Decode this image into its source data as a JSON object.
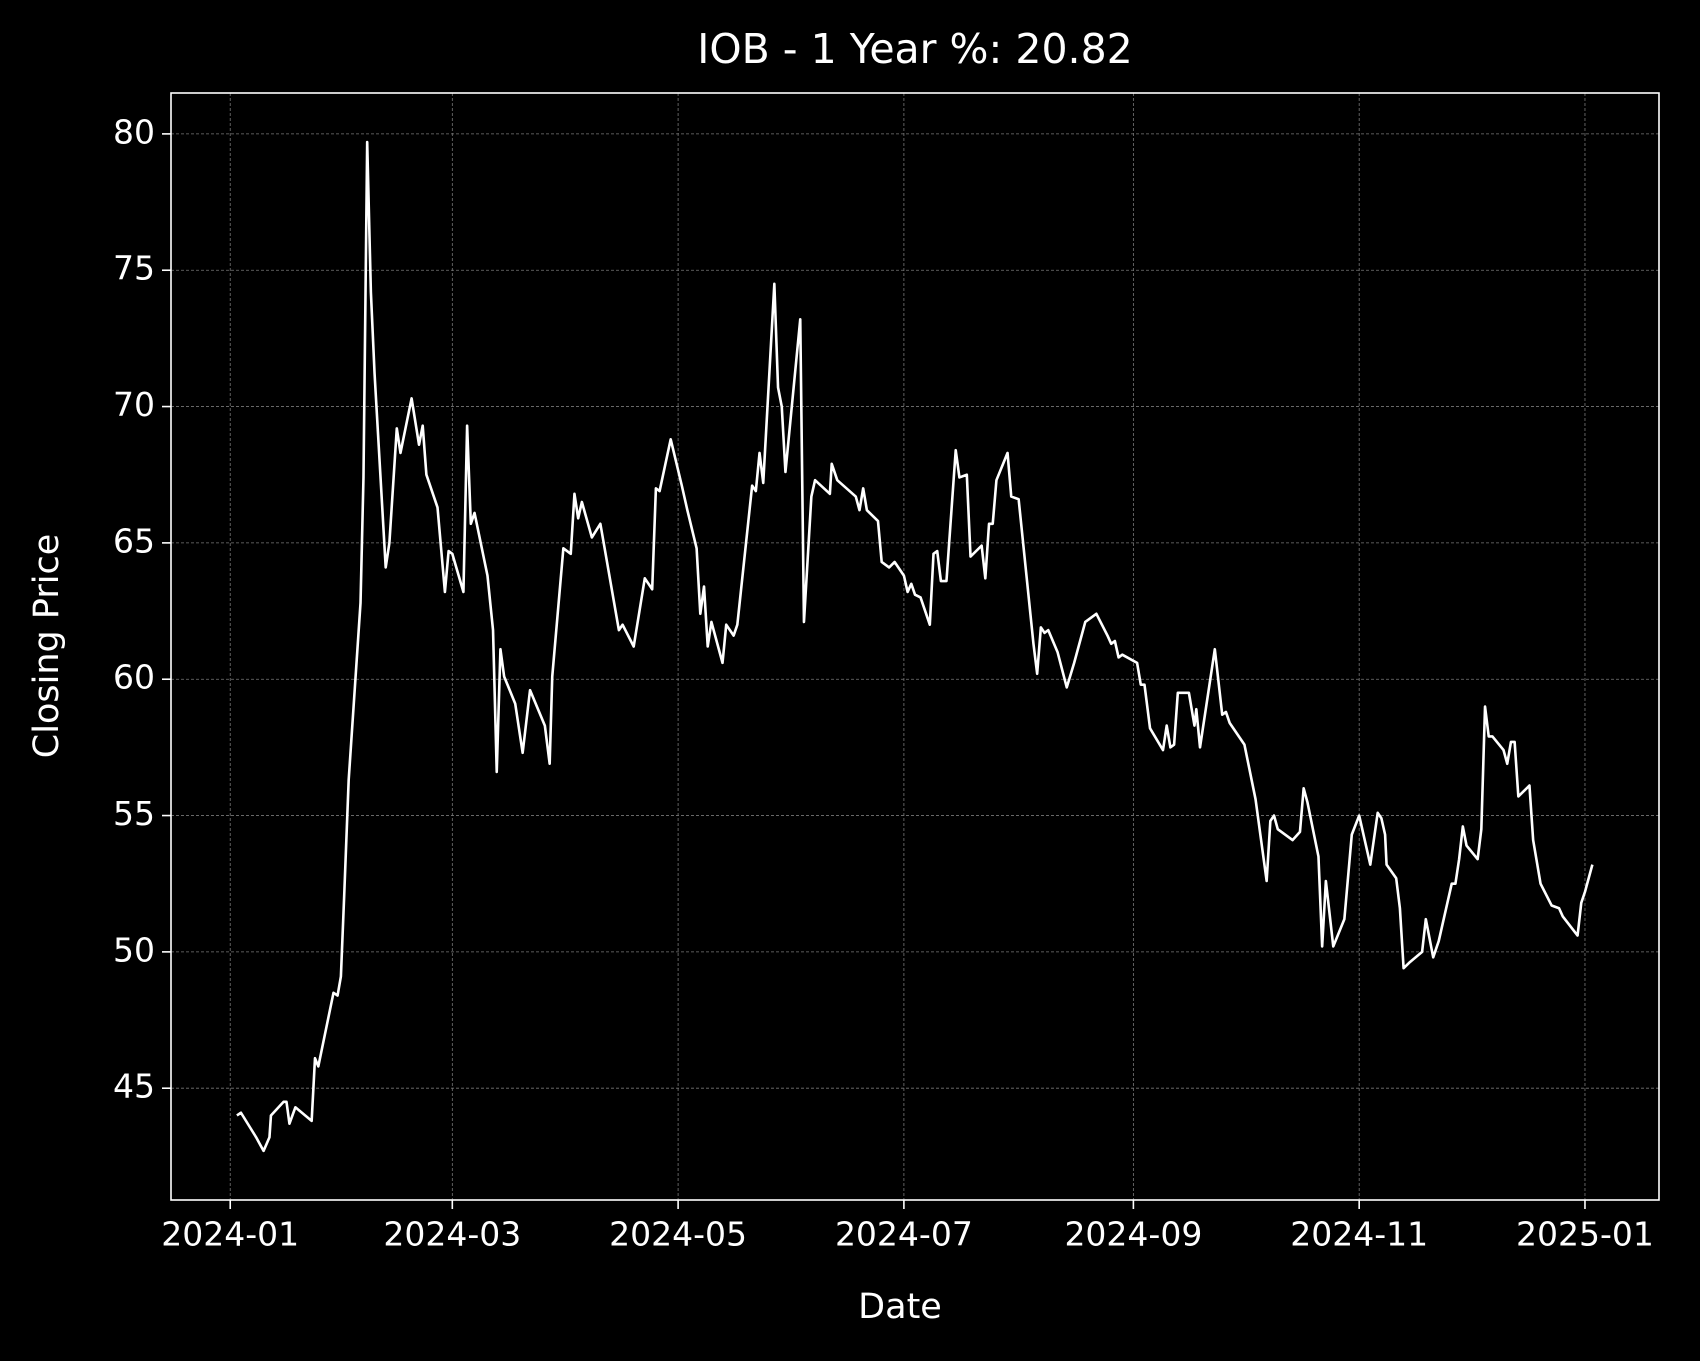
{
  "chart_data": {
    "type": "line",
    "title": "IOB - 1 Year %: 20.82",
    "x_label": "Date",
    "y_label": "Closing Price",
    "color": "#ffffff",
    "grid": true,
    "x": [
      1.8,
      2.9,
      7,
      9,
      10.6,
      11,
      14.4,
      15.2,
      16,
      17.6,
      22,
      22.9,
      23.8,
      27.9,
      29,
      29.9,
      30.8,
      32,
      35.2,
      36,
      37,
      38,
      39,
      42,
      43,
      45,
      46,
      49,
      51,
      52,
      53,
      56,
      58,
      59,
      60,
      63,
      64,
      65,
      66,
      69.5,
      71,
      72,
      73,
      74,
      77,
      79,
      81,
      85,
      86.3,
      87,
      90,
      92,
      93,
      94,
      95,
      97.7,
      100,
      105,
      106,
      109,
      112,
      114,
      115,
      116,
      119,
      122,
      123.5,
      126,
      127,
      128,
      129,
      130,
      133,
      134,
      136,
      137,
      141,
      142,
      143,
      144,
      147,
      148,
      149,
      150,
      154,
      155,
      157,
      158,
      162,
      162.5,
      164,
      169,
      170,
      171,
      172,
      175,
      176,
      178,
      179.5,
      182,
      183,
      184,
      185,
      186.5,
      189,
      190,
      191,
      192,
      193.5,
      196,
      197,
      199,
      200,
      203,
      204,
      205,
      206,
      207,
      210,
      211,
      213,
      217,
      218,
      219,
      220,
      221,
      223.5,
      226,
      228,
      231,
      234,
      237,
      238,
      239,
      240,
      241,
      245,
      246,
      247,
      248.5,
      252,
      253,
      254,
      255,
      256,
      259,
      260.5,
      261,
      262,
      266,
      268,
      269,
      270,
      274,
      277,
      280,
      281,
      282,
      283,
      287,
      289,
      290,
      291,
      294,
      295,
      296,
      298,
      301,
      303,
      305,
      308,
      310,
      311,
      312,
      312.4,
      315,
      316,
      317,
      318.5,
      322,
      323,
      325,
      326.5,
      330,
      331,
      332,
      333,
      334,
      337,
      338,
      339,
      340,
      341,
      344,
      345,
      346,
      347,
      348,
      351,
      352,
      354,
      357,
      359,
      360,
      364,
      365,
      366,
      368
    ],
    "values": [
      44.0,
      44.1,
      43.2,
      42.7,
      43.2,
      44.0,
      44.5,
      44.5,
      43.7,
      44.3,
      43.8,
      46.1,
      45.8,
      48.5,
      48.4,
      49.1,
      52.1,
      56.3,
      62.8,
      67.4,
      79.7,
      74.2,
      71.2,
      64.1,
      65.0,
      69.2,
      68.3,
      70.3,
      68.6,
      69.3,
      67.5,
      66.3,
      63.2,
      64.7,
      64.6,
      63.2,
      69.3,
      65.7,
      66.1,
      63.8,
      61.8,
      56.6,
      61.1,
      60.1,
      59.1,
      57.3,
      59.6,
      58.3,
      56.9,
      60.1,
      64.8,
      64.6,
      66.8,
      65.9,
      66.5,
      65.2,
      65.7,
      61.8,
      62.0,
      61.2,
      63.7,
      63.3,
      67.0,
      66.9,
      68.8,
      67.1,
      66.2,
      64.8,
      62.4,
      63.4,
      61.2,
      62.1,
      60.6,
      62.0,
      61.6,
      62.0,
      67.1,
      66.9,
      68.3,
      67.2,
      74.5,
      70.7,
      70.0,
      67.6,
      73.2,
      62.1,
      66.7,
      67.3,
      66.8,
      67.9,
      67.3,
      66.7,
      66.2,
      67.0,
      66.2,
      65.8,
      64.3,
      64.1,
      64.3,
      63.8,
      63.2,
      63.5,
      63.1,
      63.0,
      62.0,
      64.6,
      64.7,
      63.6,
      63.6,
      68.4,
      67.4,
      67.5,
      64.5,
      64.9,
      63.7,
      65.7,
      65.7,
      67.3,
      68.3,
      66.7,
      66.6,
      61.3,
      60.2,
      61.9,
      61.7,
      61.8,
      61.0,
      59.7,
      60.6,
      62.1,
      62.4,
      61.6,
      61.3,
      61.4,
      60.8,
      60.9,
      60.6,
      59.8,
      59.8,
      58.2,
      57.4,
      58.3,
      57.5,
      57.6,
      59.5,
      59.5,
      58.3,
      58.9,
      57.5,
      61.1,
      58.7,
      58.8,
      58.4,
      57.6,
      55.6,
      52.6,
      54.8,
      55.0,
      54.5,
      54.1,
      54.4,
      56.0,
      55.5,
      53.5,
      50.2,
      52.6,
      50.2,
      51.2,
      54.3,
      55.0,
      53.2,
      55.1,
      54.9,
      54.3,
      53.2,
      52.7,
      51.6,
      49.4,
      49.6,
      50.0,
      51.2,
      49.8,
      50.4,
      52.5,
      52.5,
      53.4,
      54.6,
      53.9,
      53.4,
      54.5,
      59.0,
      57.9,
      57.9,
      57.4,
      56.9,
      57.7,
      57.7,
      55.7,
      56.1,
      54.1,
      52.5,
      51.7,
      51.6,
      51.3,
      50.6,
      51.8,
      52.2,
      53.2
    ],
    "xlim": [
      -16,
      386
    ],
    "ylim": [
      40.9,
      81.5
    ],
    "xticks": [
      {
        "value": 0,
        "label": "2024-01"
      },
      {
        "value": 60,
        "label": "2024-03"
      },
      {
        "value": 121,
        "label": "2024-05"
      },
      {
        "value": 182,
        "label": "2024-07"
      },
      {
        "value": 244,
        "label": "2024-09"
      },
      {
        "value": 305,
        "label": "2024-11"
      },
      {
        "value": 366,
        "label": "2025-01"
      }
    ],
    "yticks": [
      45,
      50,
      55,
      60,
      65,
      70,
      75,
      80
    ]
  }
}
